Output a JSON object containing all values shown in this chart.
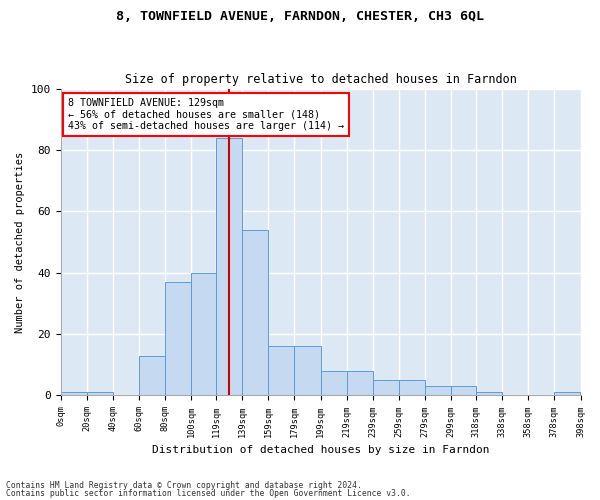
{
  "title1": "8, TOWNFIELD AVENUE, FARNDON, CHESTER, CH3 6QL",
  "title2": "Size of property relative to detached houses in Farndon",
  "xlabel": "Distribution of detached houses by size in Farndon",
  "ylabel": "Number of detached properties",
  "footnote1": "Contains HM Land Registry data © Crown copyright and database right 2024.",
  "footnote2": "Contains public sector information licensed under the Open Government Licence v3.0.",
  "bin_edges": [
    0,
    20,
    40,
    60,
    80,
    100,
    119,
    139,
    159,
    179,
    199,
    219,
    239,
    259,
    279,
    299,
    318,
    338,
    358,
    378,
    398
  ],
  "bar_heights": [
    1,
    1,
    0,
    13,
    37,
    40,
    84,
    54,
    16,
    16,
    8,
    8,
    5,
    5,
    3,
    3,
    1,
    0,
    0,
    1
  ],
  "bar_color": "#c5d9f0",
  "bar_edge_color": "#5b9bd5",
  "subject_value": 129,
  "annotation_title": "8 TOWNFIELD AVENUE: 129sqm",
  "annotation_line1": "← 56% of detached houses are smaller (148)",
  "annotation_line2": "43% of semi-detached houses are larger (114) →",
  "vline_color": "#cc0000",
  "ylim": [
    0,
    100
  ],
  "bg_color": "#dce9f5",
  "fig_color": "#ffffff",
  "grid_color": "#ffffff",
  "yticks": [
    0,
    20,
    40,
    60,
    80,
    100
  ]
}
